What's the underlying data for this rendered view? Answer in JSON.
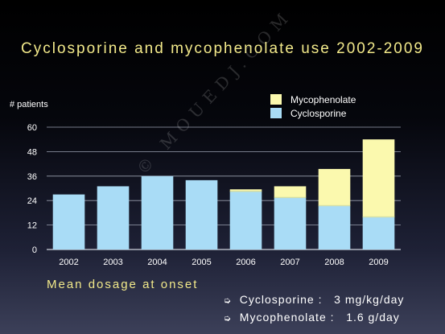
{
  "notes": {
    "heading": "Mean dosage at onset",
    "items": [
      {
        "arrow": "➭",
        "label": "Cyclosporine :",
        "value": "3 mg/kg/day"
      },
      {
        "arrow": "➭",
        "label": "Mycophenolate :",
        "value": "1.6 g/day"
      }
    ]
  },
  "watermark": "© MOUEDJ.COM",
  "chart_data": {
    "type": "bar",
    "stacked": true,
    "title": "Cyclosporine and mycophenolate use 2002-2009",
    "ylabel": "# patients",
    "xlabel": "",
    "ylim": [
      0,
      60
    ],
    "yticks": [
      0,
      12,
      24,
      36,
      48,
      60
    ],
    "grid": true,
    "legend": "top-right",
    "categories": [
      "2002",
      "2003",
      "2004",
      "2005",
      "2006",
      "2007",
      "2008",
      "2009"
    ],
    "series": [
      {
        "name": "Cyclosporine",
        "color": "#a9dcf6",
        "values": [
          27,
          31,
          36,
          34,
          28.5,
          25.5,
          21.5,
          16
        ]
      },
      {
        "name": "Mycophenolate",
        "color": "#fbf9ae",
        "values": [
          0,
          0,
          0,
          0,
          1,
          5.5,
          18,
          38
        ]
      }
    ]
  }
}
